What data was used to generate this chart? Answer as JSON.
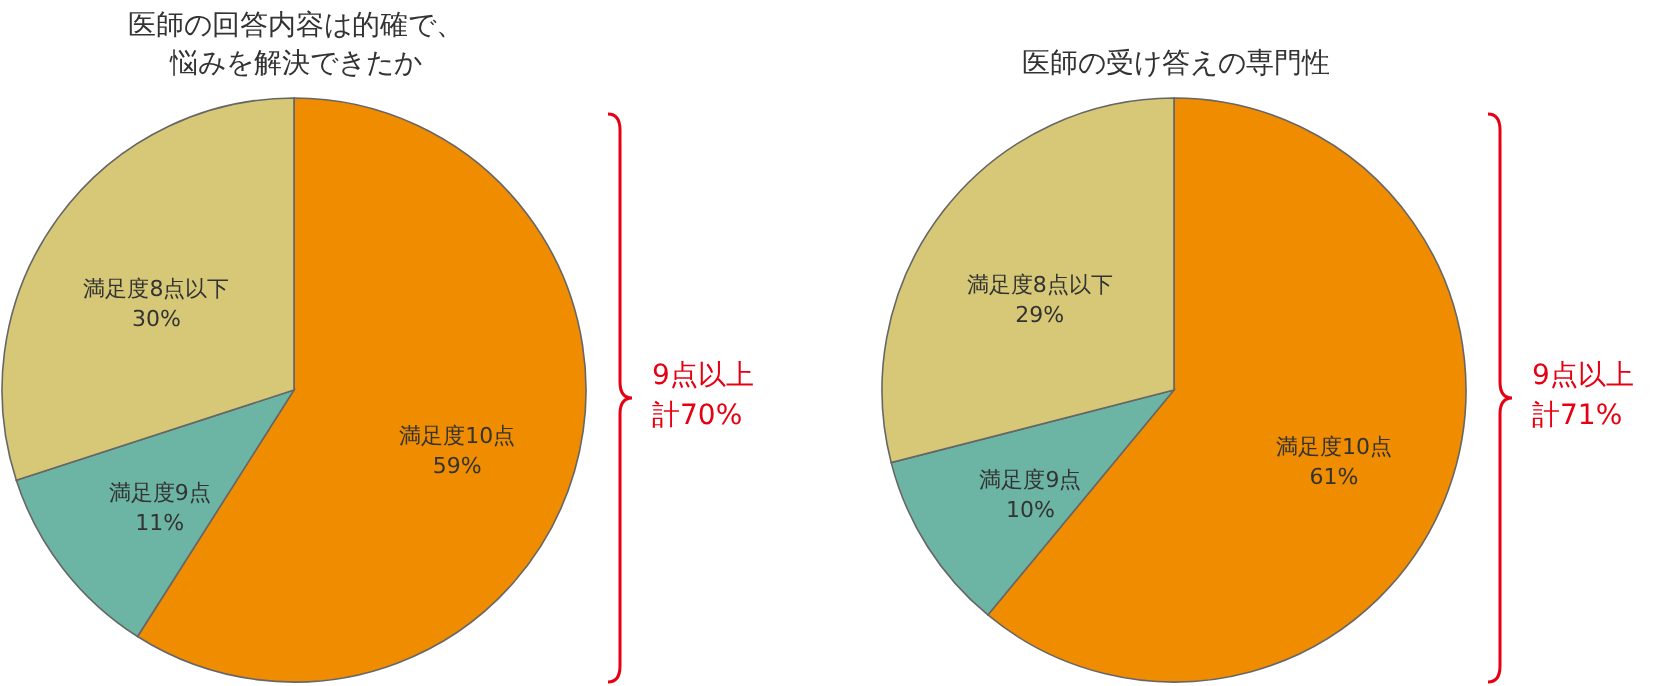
{
  "chart_data": [
    {
      "type": "pie",
      "title": "医師の回答内容は的確で、悩みを解決できたか",
      "categories": [
        "満足度10点",
        "満足度9点",
        "満足度8点以下"
      ],
      "values": [
        59,
        11,
        30
      ],
      "value_labels": [
        "59%",
        "11%",
        "30%"
      ],
      "colors": [
        "#f08c00",
        "#6cb5a4",
        "#d6c877"
      ],
      "annotations": [
        "9点以上",
        "計70%"
      ]
    },
    {
      "type": "pie",
      "title": "医師の受け答えの専門性",
      "categories": [
        "満足度10点",
        "満足度9点",
        "満足度8点以下"
      ],
      "values": [
        61,
        10,
        29
      ],
      "value_labels": [
        "61%",
        "10%",
        "29%"
      ],
      "colors": [
        "#f08c00",
        "#6cb5a4",
        "#d6c877"
      ],
      "annotations": [
        "9点以上",
        "計71%"
      ]
    }
  ]
}
